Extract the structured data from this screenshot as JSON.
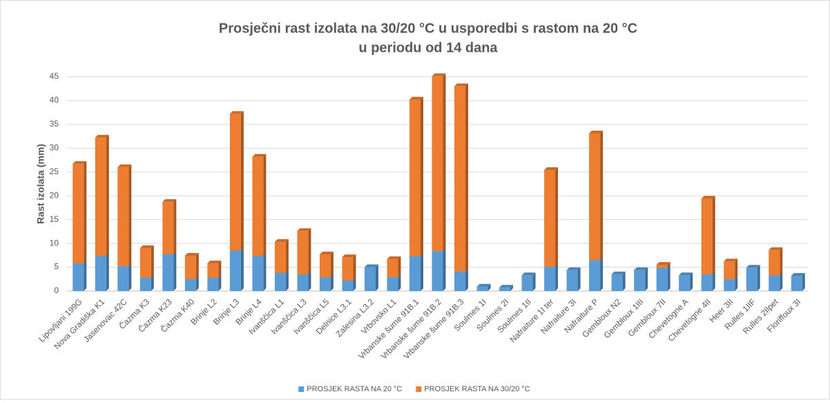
{
  "chart_data": {
    "type": "bar",
    "stacked": true,
    "title": [
      "Prosječni rast izolata na 30/20 °C u usporedbi s rastom na 20 °C",
      "u periodu od 14 dana"
    ],
    "ylabel": "Rast izolata  (mm)",
    "categories": [
      "Lipovljani 199G",
      "Nova Gradiška K1",
      "Jasenovac 42C",
      "Čazma K3",
      "Čazma K23",
      "Čazma K40",
      "Brinje L2",
      "Brinje L3",
      "Brinje L4",
      "Ivanščica L1",
      "Ivanščica L3",
      "Ivanščica L5",
      "Delnice L3.1",
      "Zalesina L3.2",
      "Vrbovsko L1",
      "Vrbanske šume 91B.1",
      "Vrbanske šume 91B.2",
      "Vrbanske šume 91B.3",
      "Soulmes 1I",
      "Soulmes 2I",
      "Soulmes 1II",
      "Nafraiture 1I ter",
      "Nafraiture 3I",
      "Nafraiture P",
      "Gembloux N2",
      "Gembloux 1III",
      "Gembloux 7II",
      "Chevetogne A",
      "Chevetogne 4II",
      "Heer 3II",
      "Rulles 1IIF",
      "Rulles 2Ilpet",
      "Floriffoux 3I"
    ],
    "series": [
      {
        "name": "PROSJEK RASTA NA 20 °C",
        "color": "#5b9bd5",
        "values": [
          5.8,
          7.4,
          5.2,
          2.8,
          7.7,
          2.5,
          2.8,
          8.5,
          7.4,
          3.8,
          3.5,
          2.9,
          2.2,
          5.0,
          2.9,
          7.3,
          8.4,
          4.1,
          0.9,
          0.7,
          3.3,
          5.1,
          4.4,
          6.5,
          3.5,
          4.4,
          4.9,
          3.3,
          3.5,
          2.5,
          4.9,
          3.3,
          3.2
        ]
      },
      {
        "name": "PROSJEK RASTA NA 30/20 °C",
        "color": "#ed7d31",
        "values": [
          20.9,
          24.8,
          20.8,
          6.2,
          11.0,
          4.9,
          3.0,
          28.7,
          20.8,
          6.5,
          9.1,
          4.8,
          4.9,
          0,
          3.8,
          32.9,
          36.7,
          38.9,
          0,
          0,
          0,
          20.3,
          0,
          26.6,
          0,
          0,
          0.6,
          0,
          15.9,
          3.7,
          0,
          5.3,
          0
        ]
      }
    ],
    "ylim": [
      0,
      45
    ],
    "yticks": [
      0,
      5,
      10,
      15,
      20,
      25,
      30,
      35,
      40,
      45
    ],
    "grid": true,
    "legend": "bottom"
  }
}
